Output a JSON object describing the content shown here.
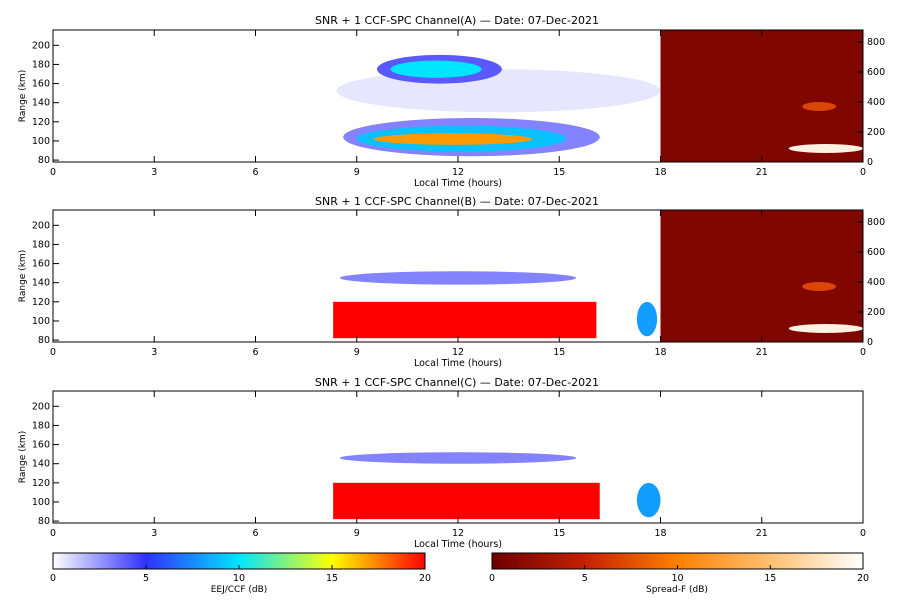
{
  "figure": {
    "colors": {
      "axis": "#000000",
      "background": "#ffffff"
    }
  },
  "chart_data": [
    {
      "type": "heatmap",
      "channel": "A",
      "title": "SNR + 1 CCF-SPC Channel(A) — Date: 07-Dec-2021",
      "xlabel": "Local Time (hours)",
      "ylabel": "Range (km)",
      "x_ticks": [
        "0",
        "3",
        "6",
        "9",
        "12",
        "15",
        "18",
        "21",
        "0"
      ],
      "xlim": [
        0,
        24
      ],
      "y_ticks": [
        "80",
        "100",
        "120",
        "140",
        "160",
        "180",
        "200"
      ],
      "ylim": [
        78,
        216
      ],
      "right_y_ticks": [
        "0",
        "200",
        "400",
        "600",
        "800"
      ],
      "right_ylim": [
        0,
        880
      ],
      "regions": [
        {
          "kind": "eej",
          "t": [
            8.4,
            18.0
          ],
          "r": [
            130,
            175
          ],
          "level": 0.6,
          "note": "diffuse background"
        },
        {
          "kind": "eej",
          "t": [
            8.6,
            16.2
          ],
          "r": [
            84,
            124
          ],
          "level": 3,
          "note": "lower echo envelope"
        },
        {
          "kind": "eej",
          "t": [
            9.0,
            15.2
          ],
          "r": [
            89,
            116
          ],
          "level": 9
        },
        {
          "kind": "eej",
          "t": [
            9.5,
            14.2
          ],
          "r": [
            96,
            108
          ],
          "level": 17
        },
        {
          "kind": "eej",
          "t": [
            9.6,
            13.3
          ],
          "r": [
            160,
            190
          ],
          "level": 4,
          "note": "upper echo"
        },
        {
          "kind": "eej",
          "t": [
            10.0,
            12.7
          ],
          "r": [
            166,
            184
          ],
          "level": 10
        },
        {
          "kind": "spread_f",
          "t": [
            18.0,
            24.0
          ],
          "r": [
            0,
            880
          ],
          "level": 1,
          "note": "dark red night-time background"
        },
        {
          "kind": "spread_f",
          "t": [
            21.8,
            24.0
          ],
          "alt": [
            60,
            120
          ],
          "level": 19
        },
        {
          "kind": "spread_f",
          "t": [
            22.2,
            23.2
          ],
          "alt": [
            340,
            400
          ],
          "level": 7
        }
      ]
    },
    {
      "type": "heatmap",
      "channel": "B",
      "title": "SNR + 1 CCF-SPC Channel(B) — Date: 07-Dec-2021",
      "xlabel": "Local Time (hours)",
      "ylabel": "Range (km)",
      "x_ticks": [
        "0",
        "3",
        "6",
        "9",
        "12",
        "15",
        "18",
        "21",
        "0"
      ],
      "xlim": [
        0,
        24
      ],
      "y_ticks": [
        "80",
        "100",
        "120",
        "140",
        "160",
        "180",
        "200"
      ],
      "ylim": [
        78,
        216
      ],
      "right_y_ticks": [
        "0",
        "200",
        "400",
        "600",
        "800"
      ],
      "right_ylim": [
        0,
        880
      ],
      "regions": [
        {
          "kind": "eej",
          "t": [
            8.3,
            16.1
          ],
          "r": [
            82,
            120
          ],
          "level": 20,
          "note": "saturated block"
        },
        {
          "kind": "eej",
          "t": [
            8.5,
            15.5
          ],
          "r": [
            138,
            152
          ],
          "level": 3,
          "note": "faint arc"
        },
        {
          "kind": "eej",
          "t": [
            17.3,
            17.9
          ],
          "r": [
            84,
            120
          ],
          "level": 8,
          "note": "patches"
        },
        {
          "kind": "spread_f",
          "t": [
            18.0,
            24.0
          ],
          "r": [
            0,
            880
          ],
          "level": 1
        },
        {
          "kind": "spread_f",
          "t": [
            21.8,
            24.0
          ],
          "alt": [
            60,
            120
          ],
          "level": 19
        },
        {
          "kind": "spread_f",
          "t": [
            22.2,
            23.2
          ],
          "alt": [
            340,
            400
          ],
          "level": 7
        }
      ]
    },
    {
      "type": "heatmap",
      "channel": "C",
      "title": "SNR + 1 CCF-SPC Channel(C) — Date: 07-Dec-2021",
      "xlabel": "Local Time (hours)",
      "ylabel": "Range (km)",
      "x_ticks": [
        "0",
        "3",
        "6",
        "9",
        "12",
        "15",
        "18",
        "21",
        "0"
      ],
      "xlim": [
        0,
        24
      ],
      "y_ticks": [
        "80",
        "100",
        "120",
        "140",
        "160",
        "180",
        "200"
      ],
      "ylim": [
        78,
        216
      ],
      "regions": [
        {
          "kind": "eej",
          "t": [
            8.3,
            16.2
          ],
          "r": [
            82,
            120
          ],
          "level": 20,
          "note": "saturated block"
        },
        {
          "kind": "eej",
          "t": [
            8.5,
            15.5
          ],
          "r": [
            140,
            152
          ],
          "level": 3,
          "note": "faint arc"
        },
        {
          "kind": "eej",
          "t": [
            17.3,
            18.0
          ],
          "r": [
            84,
            120
          ],
          "level": 8,
          "note": "patches"
        }
      ]
    }
  ],
  "colorbars": [
    {
      "label": "EEJ/CCF (dB)",
      "ticks": [
        "0",
        "5",
        "10",
        "15",
        "20"
      ],
      "range": [
        0,
        20
      ],
      "colors": [
        "#ffffff",
        "#3030ff",
        "#00e5ff",
        "#ffff00",
        "#ff0000"
      ]
    },
    {
      "label": "Spread-F (dB)",
      "ticks": [
        "0",
        "5",
        "10",
        "15",
        "20"
      ],
      "range": [
        0,
        20
      ],
      "colors": [
        "#6e0000",
        "#c62000",
        "#ff8000",
        "#ffc070",
        "#ffffff"
      ]
    }
  ]
}
